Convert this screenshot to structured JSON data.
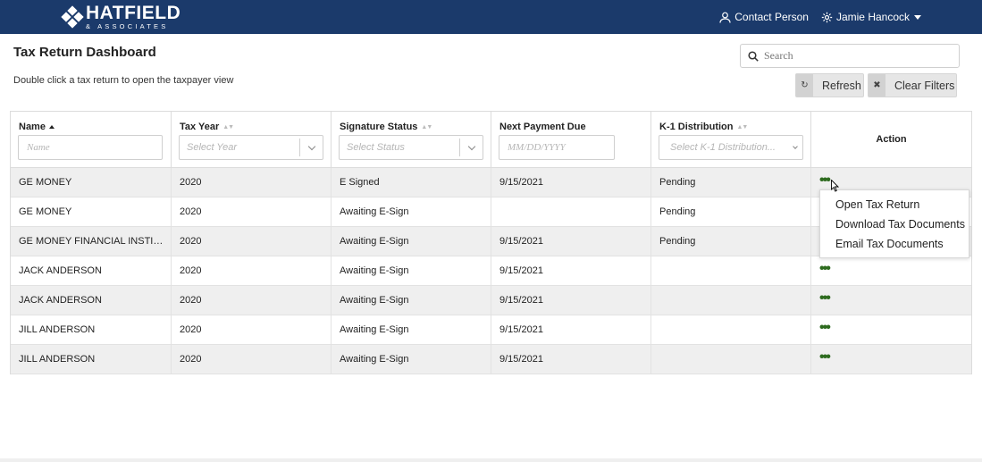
{
  "brand": {
    "name": "HATFIELD",
    "subtitle": "& ASSOCIATES"
  },
  "header": {
    "contact_label": "Contact Person",
    "user_name": "Jamie Hancock"
  },
  "page": {
    "title": "Tax Return Dashboard",
    "hint": "Double click a tax return to open the taxpayer view"
  },
  "search": {
    "placeholder": "Search",
    "value": ""
  },
  "toolbar": {
    "refresh_label": "Refresh",
    "clear_filters_label": "Clear Filters"
  },
  "table": {
    "columns": {
      "name": {
        "label": "Name",
        "filter_placeholder": "Name"
      },
      "tax_year": {
        "label": "Tax Year",
        "filter_placeholder": "Select Year"
      },
      "signature": {
        "label": "Signature Status",
        "filter_placeholder": "Select Status"
      },
      "payment": {
        "label": "Next Payment Due",
        "filter_placeholder": "MM/DD/YYYY"
      },
      "k1": {
        "label": "K-1 Distribution",
        "filter_placeholder": "Select K-1 Distribution..."
      },
      "action": {
        "label": "Action"
      }
    },
    "rows": [
      {
        "name": "GE MONEY",
        "year": "2020",
        "signature": "E Signed",
        "payment": "9/15/2021",
        "k1": "Pending"
      },
      {
        "name": "GE MONEY",
        "year": "2020",
        "signature": "Awaiting E-Sign",
        "payment": "",
        "k1": "Pending"
      },
      {
        "name": "GE MONEY FINANCIAL INSTITUTION",
        "year": "2020",
        "signature": "Awaiting E-Sign",
        "payment": "9/15/2021",
        "k1": "Pending"
      },
      {
        "name": "JACK ANDERSON",
        "year": "2020",
        "signature": "Awaiting E-Sign",
        "payment": "9/15/2021",
        "k1": ""
      },
      {
        "name": "JACK ANDERSON",
        "year": "2020",
        "signature": "Awaiting E-Sign",
        "payment": "9/15/2021",
        "k1": ""
      },
      {
        "name": "JILL ANDERSON",
        "year": "2020",
        "signature": "Awaiting E-Sign",
        "payment": "9/15/2021",
        "k1": ""
      },
      {
        "name": "JILL ANDERSON",
        "year": "2020",
        "signature": "Awaiting E-Sign",
        "payment": "9/15/2021",
        "k1": ""
      }
    ],
    "action_glyph": "•••"
  },
  "context_menu": {
    "items": [
      "Open Tax Return",
      "Download Tax Documents",
      "Email Tax Documents"
    ]
  },
  "colors": {
    "header_bg": "#1b3a6b",
    "action_dots": "#2e6b1f"
  }
}
